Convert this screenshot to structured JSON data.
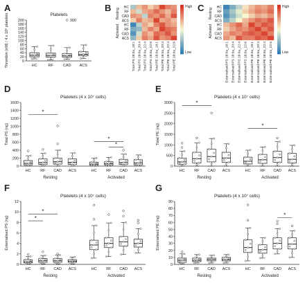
{
  "panels": [
    "A",
    "B",
    "C",
    "D",
    "E",
    "F",
    "G"
  ],
  "colors": {
    "box_edge": "#222222",
    "heat_high": "#d7301f",
    "heat_mid": "#f7f7d0",
    "heat_low": "#2c7bb6"
  },
  "chart_data": [
    {
      "panel": "A",
      "type": "box",
      "title": "Platelets",
      "ylabel": "Thrombin (nM) / 4 x 10⁶ platelets",
      "ylim": [
        0,
        200
      ],
      "yticks": [
        0,
        20,
        40,
        60,
        80,
        100,
        120,
        140,
        160,
        180,
        200
      ],
      "categories": [
        "HC",
        "RF",
        "CAD",
        "ACS"
      ],
      "boxes": [
        {
          "min": 10,
          "q1": 20,
          "median": 28,
          "q3": 40,
          "max": 70
        },
        {
          "min": 5,
          "q1": 18,
          "median": 27,
          "q3": 38,
          "max": 75
        },
        {
          "min": 8,
          "q1": 18,
          "median": 25,
          "q3": 35,
          "max": 65
        },
        {
          "min": 12,
          "q1": 25,
          "median": 32,
          "q3": 45,
          "max": 78
        }
      ],
      "outliers": [
        {
          "category": "CAD",
          "value": 200
        }
      ],
      "annotations": [
        "300"
      ]
    },
    {
      "panel": "B",
      "type": "heatmap",
      "row_labels": [
        "HC",
        "RF",
        "CAD",
        "ACS",
        "HC",
        "RF",
        "CAD",
        "ACS"
      ],
      "row_groups": [
        "Resting",
        "Activated"
      ],
      "col_labels": [
        "Total PS 18:0a_18:1",
        "Total PS 18:0a_20:4",
        "Total PS 18:0a_22:4",
        "Total PS 18:0a_22:6",
        "Total PE 18:0a_18:1",
        "Total PE 18:0a_20:4",
        "Total PE 18:0a_22:4",
        "Total PE 18:0a_22:6"
      ],
      "legend": {
        "high": "High",
        "low": "Low"
      },
      "values": [
        [
          -0.4,
          0.3,
          0.5,
          0.2,
          0.4,
          0.9,
          0.6,
          0.5
        ],
        [
          0.3,
          -0.2,
          0.4,
          0.5,
          0.7,
          0.5,
          0.3,
          0.6
        ],
        [
          0.5,
          0.4,
          -0.3,
          0.6,
          0.5,
          0.7,
          0.4,
          0.8
        ],
        [
          0.2,
          0.6,
          0.3,
          0.4,
          0.9,
          0.4,
          0.5,
          0.3
        ],
        [
          -0.9,
          -0.3,
          0.4,
          0.2,
          0.6,
          0.8,
          0.5,
          0.4
        ],
        [
          -0.6,
          -0.5,
          0.3,
          0.6,
          0.4,
          0.9,
          0.7,
          0.6
        ],
        [
          -0.8,
          -0.2,
          0.5,
          0.3,
          0.7,
          0.6,
          0.8,
          0.5
        ],
        [
          -0.5,
          0.2,
          0.6,
          0.4,
          0.8,
          0.5,
          0.6,
          0.9
        ]
      ]
    },
    {
      "panel": "C",
      "type": "heatmap",
      "row_labels": [
        "HC",
        "RF",
        "CAD",
        "ACS",
        "HC",
        "RF",
        "CAD",
        "ACS"
      ],
      "row_groups": [
        "Resting",
        "Activated"
      ],
      "col_labels": [
        "Externalised PS 18:0a_18:1",
        "Externalised PS 18:0a_20:4",
        "Externalised PS 18:0a_22:4",
        "Externalised PS 18:0a_22:6",
        "Externalised PE 18:0a_18:1",
        "Externalised PE 18:0a_20:4",
        "Externalised PE 18:0a_22:4",
        "Externalised PE 18:0a_22:6"
      ],
      "legend": {
        "high": "High",
        "low": "Low"
      },
      "values": [
        [
          -0.9,
          -0.6,
          -0.3,
          0.1,
          0.3,
          0.5,
          0.4,
          0.6
        ],
        [
          -0.7,
          -0.4,
          -0.1,
          0.2,
          0.4,
          0.6,
          0.5,
          0.7
        ],
        [
          -0.8,
          -0.5,
          -0.2,
          0.0,
          0.2,
          0.4,
          0.3,
          0.5
        ],
        [
          -0.6,
          -0.3,
          0.0,
          0.3,
          0.5,
          0.7,
          0.6,
          0.8
        ],
        [
          0.3,
          0.5,
          0.7,
          0.4,
          0.9,
          0.6,
          0.8,
          0.7
        ],
        [
          0.2,
          0.4,
          0.6,
          0.5,
          0.7,
          0.9,
          0.6,
          0.8
        ],
        [
          0.4,
          0.6,
          0.5,
          0.7,
          0.8,
          0.7,
          0.9,
          0.6
        ],
        [
          0.5,
          0.3,
          0.8,
          0.6,
          0.6,
          0.8,
          0.7,
          0.9
        ]
      ]
    },
    {
      "panel": "D",
      "type": "box",
      "title": "Platelets (4 x 10⁷ cells)",
      "ylabel": "Total PS (ng)",
      "ylim": [
        0,
        1600
      ],
      "yticks": [
        0,
        200,
        400,
        600,
        800,
        1000,
        1200,
        1400,
        1600
      ],
      "categories": [
        "HC",
        "RF",
        "CAD",
        "ACS",
        "HC",
        "RF",
        "CAD",
        "ACS"
      ],
      "groups": [
        "Resting",
        "Activated"
      ],
      "boxes": [
        {
          "min": 0,
          "q1": 30,
          "median": 70,
          "q3": 140,
          "max": 260
        },
        {
          "min": 0,
          "q1": 40,
          "median": 90,
          "q3": 180,
          "max": 320
        },
        {
          "min": 0,
          "q1": 50,
          "median": 110,
          "q3": 200,
          "max": 400
        },
        {
          "min": 0,
          "q1": 40,
          "median": 95,
          "q3": 180,
          "max": 330
        },
        {
          "min": 0,
          "q1": 20,
          "median": 50,
          "q3": 100,
          "max": 200
        },
        {
          "min": 0,
          "q1": 25,
          "median": 60,
          "q3": 110,
          "max": 220
        },
        {
          "min": 0,
          "q1": 40,
          "median": 90,
          "q3": 170,
          "max": 300
        },
        {
          "min": 0,
          "q1": 30,
          "median": 80,
          "q3": 160,
          "max": 280
        }
      ],
      "outliers": [
        {
          "index": 0,
          "value": 380
        },
        {
          "index": 2,
          "value": 1010
        },
        {
          "index": 2,
          "value": 560
        },
        {
          "index": 1,
          "value": 420
        },
        {
          "index": 6,
          "value": 400
        }
      ],
      "significance": [
        {
          "from": 0,
          "to": 2,
          "level": 1300,
          "label": "*"
        },
        {
          "from": 4,
          "to": 6,
          "level": 620,
          "label": "*"
        },
        {
          "from": 5,
          "to": 6,
          "level": 480,
          "label": "*"
        }
      ]
    },
    {
      "panel": "E",
      "type": "box",
      "title": "Platelets (4 x 10⁷ cells)",
      "ylabel": "Total PE (ng)",
      "ylim": [
        0,
        3000
      ],
      "yticks": [
        0,
        500,
        1000,
        1500,
        2000,
        2500,
        3000
      ],
      "categories": [
        "HC",
        "RF",
        "CAD",
        "ACS",
        "HC",
        "RF",
        "CAD",
        "ACS"
      ],
      "groups": [
        "Resting",
        "Activated"
      ],
      "boxes": [
        {
          "min": 0,
          "q1": 90,
          "median": 200,
          "q3": 380,
          "max": 700
        },
        {
          "min": 0,
          "q1": 150,
          "median": 350,
          "q3": 650,
          "max": 1100
        },
        {
          "min": 0,
          "q1": 200,
          "median": 450,
          "q3": 800,
          "max": 1300
        },
        {
          "min": 0,
          "q1": 180,
          "median": 380,
          "q3": 650,
          "max": 1050
        },
        {
          "min": 0,
          "q1": 100,
          "median": 230,
          "q3": 420,
          "max": 750
        },
        {
          "min": 0,
          "q1": 130,
          "median": 300,
          "q3": 550,
          "max": 900
        },
        {
          "min": 0,
          "q1": 180,
          "median": 400,
          "q3": 700,
          "max": 1150
        },
        {
          "min": 0,
          "q1": 150,
          "median": 320,
          "q3": 600,
          "max": 980
        }
      ],
      "outliers": [
        {
          "index": 0,
          "value": 1080
        },
        {
          "index": 0,
          "value": 880
        },
        {
          "index": 2,
          "value": 2500
        },
        {
          "index": 1,
          "value": 1320
        },
        {
          "index": 6,
          "value": 1320
        }
      ],
      "significance": [
        {
          "from": 0,
          "to": 2,
          "level": 2850,
          "label": "*"
        },
        {
          "from": 4,
          "to": 6,
          "level": 1780,
          "label": "*"
        }
      ]
    },
    {
      "panel": "F",
      "type": "box",
      "title": "Platelets (4 x 10⁷ cells)",
      "ylabel": "Externalised PS (ng)",
      "ylim": [
        0,
        12
      ],
      "yticks": [
        0,
        2,
        4,
        6,
        8,
        10,
        12
      ],
      "categories": [
        "HC",
        "RF",
        "CAD",
        "ACS",
        "HC",
        "RF",
        "CAD",
        "ACS"
      ],
      "groups": [
        "Resting",
        "Activated"
      ],
      "boxes": [
        {
          "min": 0.1,
          "q1": 0.3,
          "median": 0.5,
          "q3": 0.9,
          "max": 1.5
        },
        {
          "min": 0.1,
          "q1": 0.4,
          "median": 0.7,
          "q3": 1.1,
          "max": 1.7
        },
        {
          "min": 0.1,
          "q1": 0.4,
          "median": 0.7,
          "q3": 1.1,
          "max": 1.8
        },
        {
          "min": 0.1,
          "q1": 0.4,
          "median": 0.6,
          "q3": 0.9,
          "max": 1.4
        },
        {
          "min": 1.2,
          "q1": 2.8,
          "median": 3.7,
          "q3": 4.6,
          "max": 7.4
        },
        {
          "min": 1.5,
          "q1": 3.2,
          "median": 4.0,
          "q3": 5.1,
          "max": 7.9
        },
        {
          "min": 1.9,
          "q1": 3.5,
          "median": 4.3,
          "q3": 5.3,
          "max": 8.0
        },
        {
          "min": 2.2,
          "q1": 3.3,
          "median": 4.0,
          "q3": 4.8,
          "max": 6.8
        }
      ],
      "outliers": [
        {
          "index": 0,
          "value": 1.9
        },
        {
          "index": 1,
          "value": 2.4
        },
        {
          "index": 2,
          "value": 2.0
        },
        {
          "index": 4,
          "value": 11.3
        },
        {
          "index": 4,
          "value": 8.6
        },
        {
          "index": 5,
          "value": 9.5
        },
        {
          "index": 6,
          "value": 10.2
        },
        {
          "index": 6,
          "value": 9.2
        },
        {
          "index": 7,
          "value": 8.4
        },
        {
          "index": 7,
          "value": 7.9
        }
      ],
      "significance": [
        {
          "from": 0,
          "to": 2,
          "level": 9.6,
          "label": "*"
        },
        {
          "from": 0,
          "to": 1,
          "level": 8.3,
          "label": "*"
        }
      ]
    },
    {
      "panel": "G",
      "type": "box",
      "title": "Platelets (4 x 10⁷ cells)",
      "ylabel": "Externalised PE (ng)",
      "ylim": [
        0,
        90
      ],
      "yticks": [
        0,
        10,
        20,
        30,
        40,
        50,
        60,
        70,
        80,
        90
      ],
      "categories": [
        "HC",
        "RF",
        "CAD",
        "ACS",
        "HC",
        "RF",
        "CAD",
        "ACS"
      ],
      "groups": [
        "Resting",
        "Activated"
      ],
      "boxes": [
        {
          "min": 1,
          "q1": 3,
          "median": 6,
          "q3": 9,
          "max": 15
        },
        {
          "min": 2,
          "q1": 4,
          "median": 6,
          "q3": 9,
          "max": 14
        },
        {
          "min": 2,
          "q1": 5,
          "median": 7,
          "q3": 9,
          "max": 13
        },
        {
          "min": 2,
          "q1": 5,
          "median": 7,
          "q3": 10,
          "max": 14
        },
        {
          "min": 5,
          "q1": 17,
          "median": 24,
          "q3": 35,
          "max": 52
        },
        {
          "min": 9,
          "q1": 16,
          "median": 21,
          "q3": 28,
          "max": 38
        },
        {
          "min": 15,
          "q1": 22,
          "median": 30,
          "q3": 38,
          "max": 51
        },
        {
          "min": 10,
          "q1": 22,
          "median": 29,
          "q3": 38,
          "max": 48
        }
      ],
      "outliers": [
        {
          "index": 0,
          "value": 18
        },
        {
          "index": 4,
          "value": 85
        },
        {
          "index": 4,
          "value": 63
        },
        {
          "index": 6,
          "value": 62
        },
        {
          "index": 6,
          "value": 58
        },
        {
          "index": 7,
          "value": 55
        }
      ],
      "significance": [
        {
          "from": 6,
          "to": 7,
          "level": 67,
          "label": "*"
        }
      ]
    }
  ]
}
